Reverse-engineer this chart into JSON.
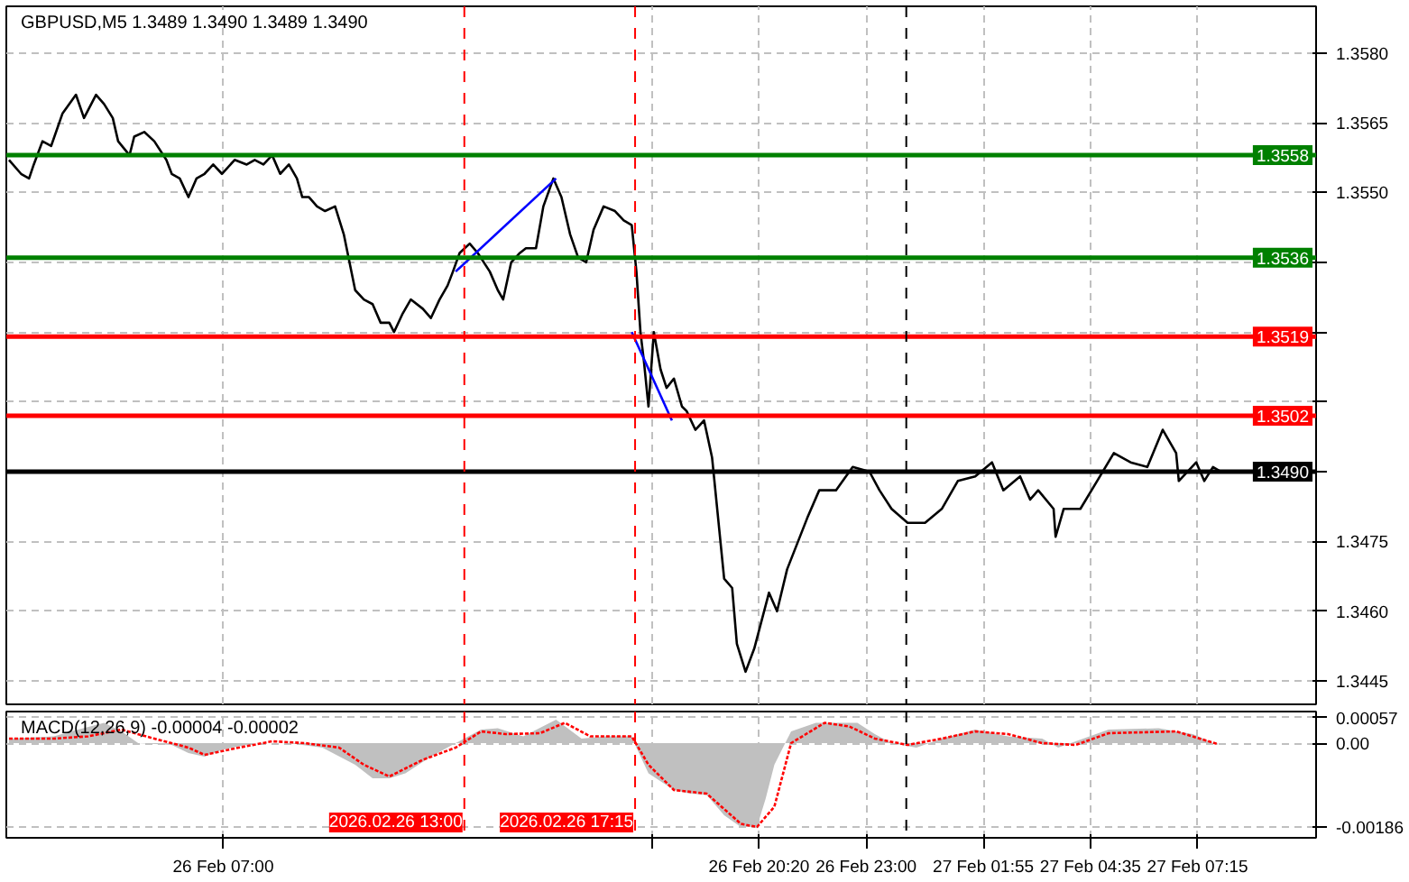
{
  "chart_data": [
    {
      "type": "line",
      "title": "GBPUSD,M5  1.3489 1.3490 1.3489 1.3490",
      "tick_labels": "y",
      "grid": true,
      "xlim": [
        "2026-02-26T01:36",
        "2026-02-27T10:12"
      ],
      "ylim": [
        1.344,
        1.359
      ],
      "xticks": [
        {
          "value": "2026-02-26T07:00",
          "label": null
        },
        {
          "value": "2026-02-26T17:40",
          "label": null
        },
        {
          "value": "2026-02-26T20:20",
          "label": null
        },
        {
          "value": "2026-02-26T23:00",
          "label": null
        },
        {
          "value": "2026-02-27T01:55",
          "label": null
        },
        {
          "value": "2026-02-27T04:35",
          "label": null
        },
        {
          "value": "2026-02-27T07:15",
          "label": null
        }
      ],
      "yticks": [
        1.3445,
        {
          "value": 1.346,
          "label": "1.3460"
        },
        1.3475,
        {
          "value": 1.349,
          "label": null
        },
        {
          "value": 1.3505,
          "label": null
        },
        {
          "value": 1.352,
          "label": null
        },
        {
          "value": 1.3535,
          "label": null
        },
        {
          "value": 1.355,
          "label": "1.3550"
        },
        1.3565,
        {
          "value": 1.358,
          "label": "1.3580"
        }
      ],
      "x": [
        "2026-02-26T01:40",
        "2026-02-26T01:58",
        "2026-02-26T02:10",
        "2026-02-26T02:17",
        "2026-02-26T02:30",
        "2026-02-26T02:43",
        "2026-02-26T03:00",
        "2026-02-26T03:20",
        "2026-02-26T03:32",
        "2026-02-26T03:50",
        "2026-02-26T04:02",
        "2026-02-26T04:15",
        "2026-02-26T04:23",
        "2026-02-26T04:40",
        "2026-02-26T04:47",
        "2026-02-26T05:02",
        "2026-02-26T05:17",
        "2026-02-26T05:35",
        "2026-02-26T05:43",
        "2026-02-26T05:55",
        "2026-02-26T06:08",
        "2026-02-26T06:20",
        "2026-02-26T06:32",
        "2026-02-26T06:45",
        "2026-02-26T06:58",
        "2026-02-26T07:17",
        "2026-02-26T07:35",
        "2026-02-26T07:47",
        "2026-02-26T08:00",
        "2026-02-26T08:13",
        "2026-02-26T08:25",
        "2026-02-26T08:38",
        "2026-02-26T08:50",
        "2026-02-26T08:58",
        "2026-02-26T09:08",
        "2026-02-26T09:20",
        "2026-02-26T09:32",
        "2026-02-26T09:47",
        "2026-02-26T10:00",
        "2026-02-26T10:17",
        "2026-02-26T10:30",
        "2026-02-26T10:43",
        "2026-02-26T10:55",
        "2026-02-26T11:08",
        "2026-02-26T11:15",
        "2026-02-26T11:28",
        "2026-02-26T11:40",
        "2026-02-26T11:58",
        "2026-02-26T12:10",
        "2026-02-26T12:23",
        "2026-02-26T12:35",
        "2026-02-26T12:43",
        "2026-02-26T12:53",
        "2026-02-26T13:08",
        "2026-02-26T13:20",
        "2026-02-26T13:38",
        "2026-02-26T13:50",
        "2026-02-26T13:58",
        "2026-02-26T14:10",
        "2026-02-26T14:23",
        "2026-02-26T14:32",
        "2026-02-26T14:47",
        "2026-02-26T14:58",
        "2026-02-26T15:13",
        "2026-02-26T15:25",
        "2026-02-26T15:38",
        "2026-02-26T15:50",
        "2026-02-26T16:02",
        "2026-02-26T16:13",
        "2026-02-26T16:28",
        "2026-02-26T16:45",
        "2026-02-26T16:58",
        "2026-02-26T17:10",
        "2026-02-26T17:17",
        "2026-02-26T17:23",
        "2026-02-26T17:28",
        "2026-02-26T17:35",
        "2026-02-26T17:43",
        "2026-02-26T17:53",
        "2026-02-26T18:02",
        "2026-02-26T18:13",
        "2026-02-26T18:25",
        "2026-02-26T18:32",
        "2026-02-26T18:45",
        "2026-02-26T18:58",
        "2026-02-26T19:10",
        "2026-02-26T19:28",
        "2026-02-26T19:40",
        "2026-02-26T19:47",
        "2026-02-26T20:00",
        "2026-02-26T20:13",
        "2026-02-26T20:35",
        "2026-02-26T20:47",
        "2026-02-26T21:02",
        "2026-02-26T21:32",
        "2026-02-26T21:50",
        "2026-02-26T22:15",
        "2026-02-26T22:40",
        "2026-02-26T23:05",
        "2026-02-26T23:20",
        "2026-02-26T23:38",
        "2026-02-27T00:02",
        "2026-02-27T00:28",
        "2026-02-27T00:53",
        "2026-02-27T01:17",
        "2026-02-27T01:43",
        "2026-02-27T02:08",
        "2026-02-27T02:25",
        "2026-02-27T02:50",
        "2026-02-27T03:05",
        "2026-02-27T03:17",
        "2026-02-27T03:40",
        "2026-02-27T03:43",
        "2026-02-27T03:55",
        "2026-02-27T04:20",
        "2026-02-27T04:45",
        "2026-02-27T05:10",
        "2026-02-27T05:35",
        "2026-02-27T06:00",
        "2026-02-27T06:23",
        "2026-02-27T06:43",
        "2026-02-27T06:47",
        "2026-02-27T07:13",
        "2026-02-27T07:25",
        "2026-02-27T07:38",
        "2026-02-27T07:50"
      ],
      "series": [
        {
          "color": "#000000",
          "values": [
            1.3557,
            1.3554,
            1.3553,
            1.3556,
            1.3561,
            1.356,
            1.3567,
            1.3571,
            1.3566,
            1.3571,
            1.3569,
            1.3566,
            1.3561,
            1.3558,
            1.3562,
            1.3563,
            1.3561,
            1.3557,
            1.3554,
            1.3553,
            1.3549,
            1.3553,
            1.3554,
            1.3556,
            1.3554,
            1.3557,
            1.3556,
            1.3557,
            1.3556,
            1.3558,
            1.3554,
            1.3556,
            1.3553,
            1.3549,
            1.3549,
            1.3547,
            1.3546,
            1.3547,
            1.3541,
            1.3529,
            1.3527,
            1.3526,
            1.3522,
            1.3522,
            1.352,
            1.3524,
            1.3527,
            1.3525,
            1.3523,
            1.3527,
            1.353,
            1.3533,
            1.3537,
            1.3539,
            1.3537,
            1.3533,
            1.3529,
            1.3527,
            1.3535,
            1.3537,
            1.3538,
            1.3538,
            1.3547,
            1.3553,
            1.3549,
            1.3541,
            1.3536,
            1.3535,
            1.3542,
            1.3547,
            1.3546,
            1.3544,
            1.3543,
            1.3533,
            1.352,
            1.3514,
            1.3504,
            1.352,
            1.3512,
            1.3508,
            1.351,
            1.3504,
            1.3503,
            1.3499,
            1.3501,
            1.3493,
            1.3467,
            1.3465,
            1.3453,
            1.3447,
            1.3452,
            1.3464,
            1.346,
            1.3469,
            1.348,
            1.3486,
            1.3486,
            1.3491,
            1.349,
            1.3486,
            1.3482,
            1.3479,
            1.3479,
            1.3482,
            1.3488,
            1.3489,
            1.3492,
            1.3486,
            1.3489,
            1.3484,
            1.3486,
            1.3482,
            1.3476,
            1.3482,
            1.3482,
            1.3488,
            1.3494,
            1.3492,
            1.3491,
            1.3499,
            1.3494,
            1.3488,
            1.3492,
            1.3488,
            1.3491,
            1.349
          ]
        },
        {
          "color": "#0000ff",
          "x": [
            "2026-02-26T12:47",
            "2026-02-26T15:17"
          ],
          "values": [
            1.3533,
            1.3553
          ]
        },
        {
          "color": "#0000ff",
          "x": [
            "2026-02-26T17:10",
            "2026-02-26T18:10"
          ],
          "values": [
            1.352,
            1.3501
          ]
        }
      ],
      "ref_lines": [
        {
          "axis": "y",
          "value": 1.3558,
          "label": "1.3558",
          "color": "#008000",
          "line_style": "solid"
        },
        {
          "axis": "y",
          "value": 1.3536,
          "label": "1.3536",
          "color": "#008000",
          "line_style": "solid"
        },
        {
          "axis": "y",
          "value": 1.3519,
          "label": "1.3519",
          "color": "#ff0000",
          "line_style": "solid"
        },
        {
          "axis": "y",
          "value": 1.3502,
          "label": "1.3502",
          "color": "#ff0000",
          "line_style": "solid"
        },
        {
          "axis": "y",
          "value": 1.349,
          "label": "1.3490",
          "color": "#000000",
          "line_style": "solid"
        },
        {
          "axis": "x",
          "value": "2026-02-26T13:00",
          "label": null,
          "color": "#ff0000",
          "line_style": "dashed"
        },
        {
          "axis": "x",
          "value": "2026-02-26T17:15",
          "label": null,
          "color": "#ff0000",
          "line_style": "dashed"
        },
        {
          "axis": "x",
          "value": "2026-02-27T00:00",
          "label": null,
          "color": "#000000",
          "line_style": "dashed"
        }
      ]
    },
    {
      "type": "line",
      "title": "MACD(12,26,9) -0.00004 -0.00002",
      "grid": true,
      "xlim": [
        "2026-02-26T01:36",
        "2026-02-27T10:12"
      ],
      "ylim": [
        -0.0021,
        0.0007
      ],
      "xticks": [
        {
          "value": "2026-02-26T07:00",
          "label": "26 Feb 07:00"
        },
        {
          "value": "2026-02-26T17:40",
          "label": null
        },
        {
          "value": "2026-02-26T20:20",
          "label": "26 Feb 20:20"
        },
        {
          "value": "2026-02-26T23:00",
          "label": "26 Feb 23:00"
        },
        {
          "value": "2026-02-27T01:55",
          "label": "27 Feb 01:55"
        },
        {
          "value": "2026-02-27T04:35",
          "label": "27 Feb 04:35"
        },
        {
          "value": "2026-02-27T07:15",
          "label": "27 Feb 07:15"
        }
      ],
      "yticks": [
        0.00057,
        {
          "value": 0,
          "label": "0.00"
        },
        -0.00186
      ],
      "series": [
        {
          "type": "area",
          "color": "#c0c0c0",
          "x": [
            "2026-02-26T01:40",
            "2026-02-26T02:47",
            "2026-02-26T03:13",
            "2026-02-26T04:02",
            "2026-02-26T04:28",
            "2026-02-26T04:53",
            "2026-02-26T05:43",
            "2026-02-26T06:08",
            "2026-02-26T06:32",
            "2026-02-26T06:58",
            "2026-02-26T07:47",
            "2026-02-26T08:38",
            "2026-02-26T09:28",
            "2026-02-26T10:17",
            "2026-02-26T10:43",
            "2026-02-26T11:08",
            "2026-02-26T11:32",
            "2026-02-26T12:10",
            "2026-02-26T12:47",
            "2026-02-26T13:25",
            "2026-02-26T13:50",
            "2026-02-26T14:28",
            "2026-02-26T15:17",
            "2026-02-26T15:55",
            "2026-02-26T16:32",
            "2026-02-26T17:10",
            "2026-02-26T17:17",
            "2026-02-26T17:35",
            "2026-02-26T18:13",
            "2026-02-26T18:38",
            "2026-02-26T19:02",
            "2026-02-26T19:28",
            "2026-02-26T19:53",
            "2026-02-26T20:17",
            "2026-02-26T20:30",
            "2026-02-26T20:43",
            "2026-02-26T21:08",
            "2026-02-26T21:45",
            "2026-02-26T22:47",
            "2026-02-26T23:13",
            "2026-02-26T23:38",
            "2026-02-27T00:15",
            "2026-02-27T00:53",
            "2026-02-27T01:43",
            "2026-02-27T02:32",
            "2026-02-27T03:23",
            "2026-02-27T03:47",
            "2026-02-27T04:13",
            "2026-02-27T05:02",
            "2026-02-27T06:17",
            "2026-02-27T07:08",
            "2026-02-27T07:45"
          ],
          "values": [
            0.0001,
            0.00015,
            0.00026,
            0.00045,
            0.00026,
            0,
            -4e-05,
            -0.00022,
            -0.0003,
            -0.00015,
            0,
            0,
            -0.0001,
            -0.00048,
            -0.00078,
            -0.00078,
            -0.00067,
            -0.0003,
            0,
            0.0003,
            0.00033,
            0.00015,
            0.00052,
            0.0001,
            0.00015,
            0.00015,
            -0.0001,
            -0.00067,
            -0.00104,
            -0.00112,
            -0.00115,
            -0.0016,
            -0.00186,
            -0.00186,
            -0.00123,
            -0.00048,
            0.00026,
            0.00045,
            0.00045,
            0.0002,
            0,
            -0.0001,
            0.0001,
            0.0003,
            0.00015,
            0.0001,
            -0.0001,
            4e-05,
            0.0003,
            0.00033,
            0.0002,
            -4e-05
          ]
        },
        {
          "type": "line",
          "color": "#ff0000",
          "line_style": "dotted",
          "x": [
            "2026-02-26T01:40",
            "2026-02-26T02:47",
            "2026-02-26T03:38",
            "2026-02-26T04:28",
            "2026-02-26T05:17",
            "2026-02-26T06:08",
            "2026-02-26T06:32",
            "2026-02-26T07:23",
            "2026-02-26T08:13",
            "2026-02-26T09:02",
            "2026-02-26T09:53",
            "2026-02-26T10:30",
            "2026-02-26T11:08",
            "2026-02-26T11:58",
            "2026-02-26T12:47",
            "2026-02-26T13:25",
            "2026-02-26T14:02",
            "2026-02-26T14:53",
            "2026-02-26T15:30",
            "2026-02-26T16:08",
            "2026-02-26T17:10",
            "2026-02-26T17:35",
            "2026-02-26T18:13",
            "2026-02-26T19:02",
            "2026-02-26T19:53",
            "2026-02-26T20:17",
            "2026-02-26T20:43",
            "2026-02-26T21:08",
            "2026-02-26T21:58",
            "2026-02-26T22:35",
            "2026-02-26T23:13",
            "2026-02-27T00:02",
            "2026-02-27T00:53",
            "2026-02-27T01:43",
            "2026-02-27T02:32",
            "2026-02-27T03:23",
            "2026-02-27T04:13",
            "2026-02-27T05:02",
            "2026-02-27T06:43",
            "2026-02-27T07:45"
          ],
          "values": [
            0.0001,
            0.0001,
            0.00015,
            0.0003,
            0.0001,
            -0.0001,
            -0.00026,
            -0.0001,
            4e-05,
            0,
            -0.0001,
            -0.00048,
            -0.00074,
            -0.00037,
            -0.0001,
            0.00026,
            0.0002,
            0.00022,
            0.00045,
            0.00015,
            0.00015,
            -0.00048,
            -0.00104,
            -0.00112,
            -0.00179,
            -0.00186,
            -0.00141,
            0,
            0.00045,
            0.00037,
            0.0001,
            -4e-05,
            0.0001,
            0.00026,
            0.0002,
            0,
            -4e-05,
            0.00022,
            0.00026,
            -2e-05
          ]
        }
      ],
      "ref_lines": [
        {
          "axis": "x",
          "value": "2026-02-26T13:00",
          "label": "2026.02.26 13:00",
          "color": "#ff0000",
          "line_style": "dashed"
        },
        {
          "axis": "x",
          "value": "2026-02-26T17:15",
          "label": "2026.02.26 17:15",
          "color": "#ff0000",
          "line_style": "dashed"
        },
        {
          "axis": "x",
          "value": "2026-02-27T00:00",
          "label": null,
          "color": "#000000",
          "line_style": "dashed"
        }
      ]
    }
  ]
}
